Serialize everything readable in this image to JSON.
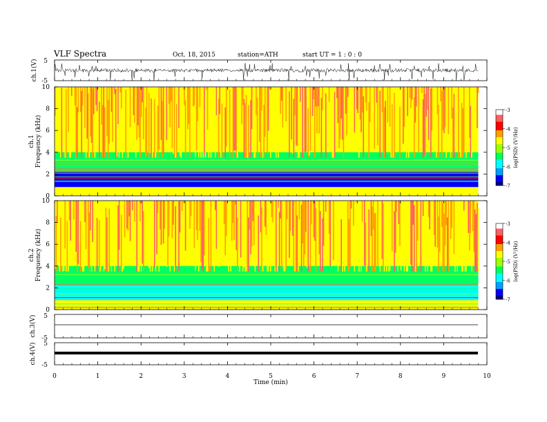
{
  "header": {
    "title": "VLF  Spectra",
    "date": "Oct. 18, 2015",
    "station": "station=ATH",
    "start": "start  UT  =   1  : 0  : 0"
  },
  "colors": {
    "spectrogram_scale": [
      "#000080",
      "#0000ff",
      "#00a0ff",
      "#00ffff",
      "#00ff60",
      "#a0ff00",
      "#ffff00",
      "#ffa000",
      "#ff0000",
      "#ff6060",
      "#ffffff"
    ],
    "waveform": "#000000"
  },
  "chart_data": [
    {
      "type": "line",
      "panel": "ch1-waveform",
      "ylabel": "ch.1(V)",
      "yticks": [
        "5",
        "-5"
      ],
      "ylim": [
        -5,
        5
      ],
      "x": [
        0,
        1,
        2,
        3,
        4,
        5,
        6,
        7,
        8,
        9,
        9.8
      ],
      "series": [
        {
          "values": [
            0,
            0,
            0,
            0,
            0,
            0,
            0,
            0,
            0,
            0,
            0
          ]
        }
      ],
      "description_hint": "noisy waveform with amplitude about +/-1 V and frequent spikes down to -5 V"
    },
    {
      "type": "heatmap",
      "panel": "ch1-spectrogram",
      "ylabel": "ch.1",
      "ylabel2": "Frequency  (kHz)",
      "yticks": [
        "10",
        "8",
        "6",
        "4",
        "2",
        "0"
      ],
      "ylim": [
        0,
        10
      ],
      "xlim": [
        0,
        9.8
      ],
      "colorbar": {
        "label": "log(PSD) (V²/Hz)",
        "ticks": [
          "-3",
          "-4",
          "-5",
          "-6",
          "-7"
        ],
        "range": [
          -7,
          -3
        ]
      },
      "bands": [
        {
          "freq_khz": [
            4,
            10
          ],
          "logpsd": -4.6
        },
        {
          "freq_khz": [
            2.2,
            4
          ],
          "logpsd": -5.6
        },
        {
          "freq_khz": [
            0.8,
            2.2
          ],
          "logpsd": -6.5
        },
        {
          "freq_khz": [
            0,
            0.8
          ],
          "logpsd": -4.5
        }
      ]
    },
    {
      "type": "heatmap",
      "panel": "ch2-spectrogram",
      "ylabel": "ch.2",
      "ylabel2": "Frequency  (kHz)",
      "yticks": [
        "10",
        "8",
        "6",
        "4",
        "2",
        "0"
      ],
      "ylim": [
        0,
        10
      ],
      "xlim": [
        0,
        9.8
      ],
      "colorbar": {
        "label": "log(PSD) (V²/Hz)",
        "ticks": [
          "-3",
          "-4",
          "-5",
          "-6",
          "-7"
        ],
        "range": [
          -7,
          -3
        ]
      },
      "bands": [
        {
          "freq_khz": [
            4,
            10
          ],
          "logpsd": -4.5
        },
        {
          "freq_khz": [
            2.2,
            4
          ],
          "logpsd": -5.4
        },
        {
          "freq_khz": [
            0.8,
            2.2
          ],
          "logpsd": -6.0
        },
        {
          "freq_khz": [
            0,
            0.8
          ],
          "logpsd": -4.8
        }
      ]
    },
    {
      "type": "line",
      "panel": "ch3-waveform",
      "ylabel": "ch.3(V)",
      "yticks": [
        "5",
        "-5"
      ],
      "ylim": [
        -5,
        5
      ],
      "x": [
        0,
        9.8
      ],
      "series": [
        {
          "values": [
            0,
            0
          ]
        }
      ]
    },
    {
      "type": "line",
      "panel": "ch4-waveform",
      "ylabel": "ch.4(V)",
      "yticks": [
        "5",
        "-5"
      ],
      "ylim": [
        -5,
        5
      ],
      "x": [
        0,
        9.8
      ],
      "series": [
        {
          "values": [
            0,
            0
          ]
        }
      ]
    }
  ],
  "x_axis": {
    "label": "Time  (min)",
    "ticks": [
      "0",
      "1",
      "2",
      "3",
      "4",
      "5",
      "6",
      "7",
      "8",
      "9",
      "10"
    ],
    "range": [
      0,
      10
    ]
  }
}
